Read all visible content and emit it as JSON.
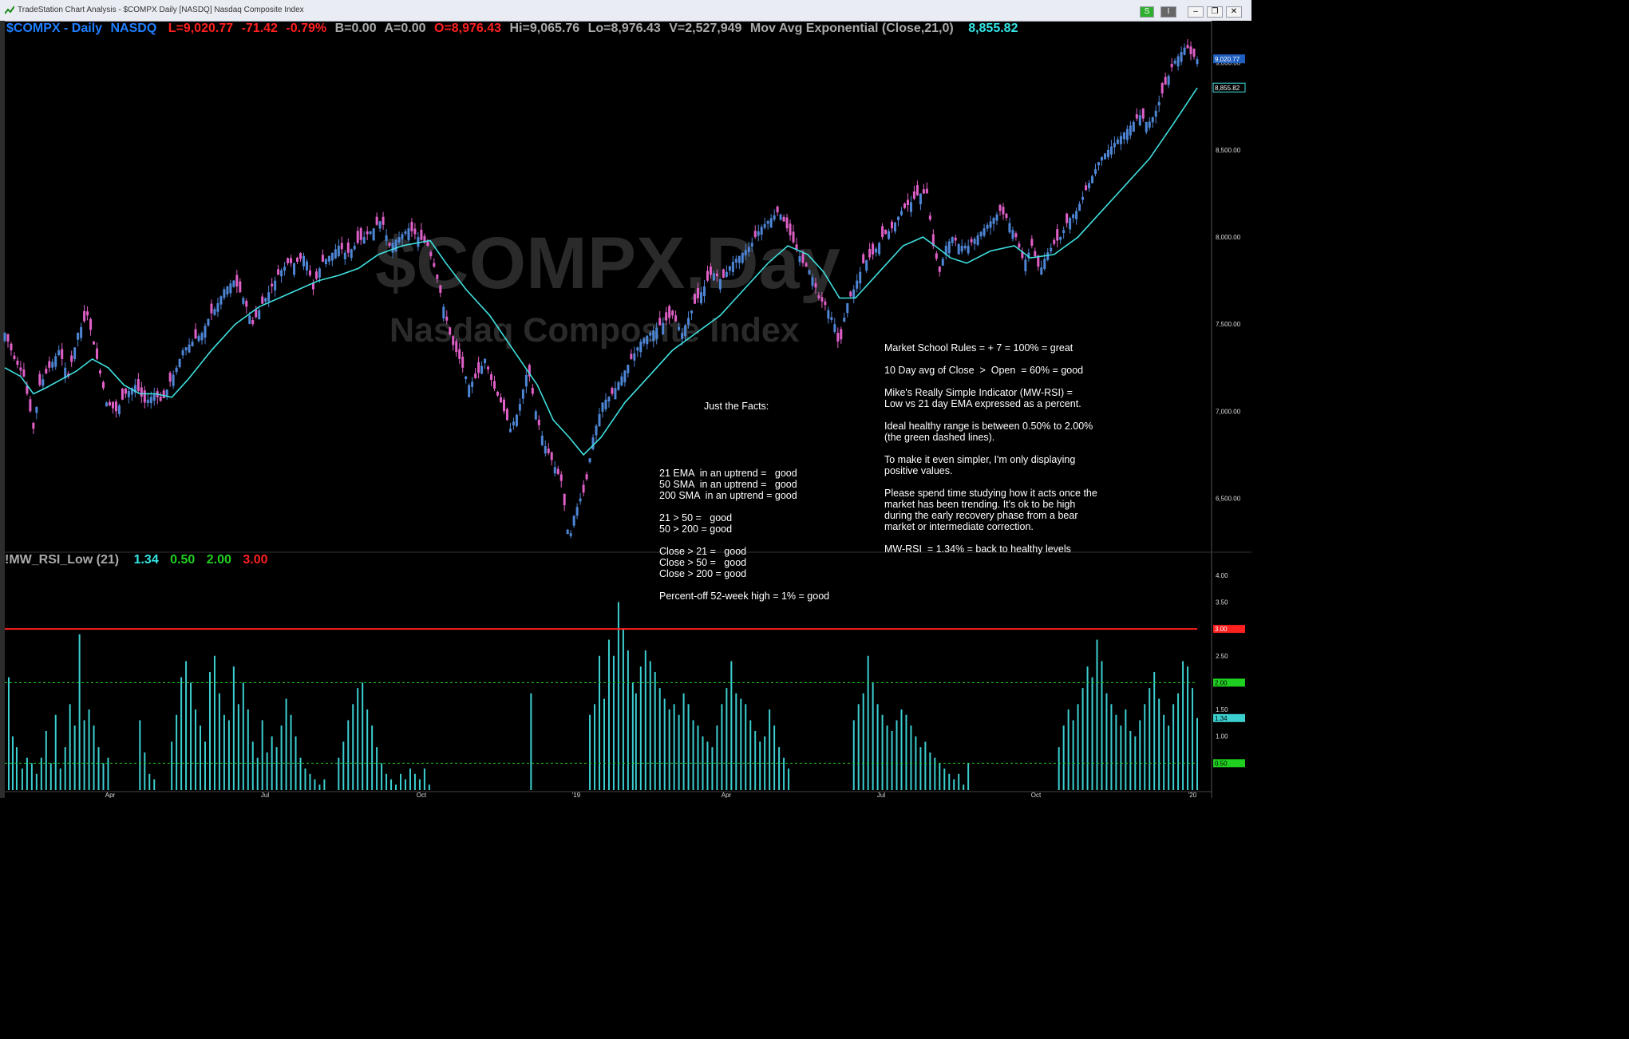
{
  "window": {
    "title": "TradeStation Chart Analysis - $COMPX Daily [NASDQ] Nasdaq Composite Index",
    "buttons": [
      "S",
      "I"
    ]
  },
  "header": {
    "symbol": "$COMPX - Daily",
    "exchange": "NASDQ",
    "last": "L=9,020.77",
    "change": "-71.42",
    "change_pct": "-0.79%",
    "bid": "B=0.00",
    "ask": "A=0.00",
    "open": "O=8,976.43",
    "high": "Hi=9,065.76",
    "low": "Lo=8,976.43",
    "volume": "V=2,527,949",
    "study": "Mov Avg Exponential (Close,21,0)",
    "study_value": "8,855.82"
  },
  "watermark": {
    "symbol": "$COMPX,Day",
    "name": "Nasdaq Composite Index"
  },
  "notes_facts": {
    "heading": "Just the Facts:",
    "lines": [
      "21 EMA  in an uptrend =   good",
      "50 SMA  in an uptrend =   good",
      "200 SMA  in an uptrend = good",
      "",
      "21 > 50 =   good",
      "50 > 200 = good",
      "",
      "Close > 21 =   good",
      "Close > 50 =   good",
      "Close > 200 = good",
      "",
      "Percent-off 52-week high = 1% = good"
    ]
  },
  "notes_rules": {
    "lines": [
      "Market School Rules = + 7 = 100% = great",
      "",
      "10 Day avg of Close  >  Open  = 60% = good",
      "",
      "Mike's Really Simple Indicator (MW-RSI) =",
      "Low vs 21 day EMA expressed as a percent.",
      "",
      "Ideal healthy range is between 0.50% to 2.00%",
      "(the green dashed lines).",
      "",
      "To make it even simpler, I'm only displaying",
      "positive values.",
      "",
      "Please spend time studying how it acts once the",
      "market has been trending. It's ok to be high",
      "during the early recovery phase from a bear",
      "market or intermediate correction.",
      "",
      "MW-RSI  = 1.34% = back to healthy levels"
    ]
  },
  "indicator_header": {
    "name": "!MW_RSI_Low (21)",
    "v1": "1.34",
    "v2": "0.50",
    "v3": "2.00",
    "v4": "3.00"
  },
  "colors": {
    "up": "#4e86d6",
    "down": "#e060c8",
    "ema": "#40e0e0",
    "hist": "#3ccfd0",
    "red": "#ff2020",
    "green": "#20d020",
    "header_blue": "#1f7fff",
    "cyan": "#35e5e5"
  },
  "chart_data": [
    {
      "type": "line",
      "title": "",
      "ylim": [
        6200,
        9150
      ],
      "yticks": [
        "6,500.00",
        "7,000.00",
        "7,500.00",
        "8,000.00",
        "8,500.00",
        "9,000.00"
      ],
      "ytick_values": [
        6500,
        7000,
        7500,
        8000,
        8500,
        9000
      ],
      "xticks": [
        "Apr",
        "Jul",
        "Oct",
        "'19",
        "Apr",
        "Jul",
        "Oct",
        "'20"
      ],
      "last_tag": "9,020.77",
      "ema_tag": "8,855.82",
      "series": [
        {
          "name": "$COMPX",
          "x": [
            0,
            12,
            24,
            36,
            44,
            56,
            68,
            80,
            92,
            104,
            116,
            128,
            140,
            152,
            164,
            176,
            188,
            198,
            206,
            216,
            224,
            236,
            248,
            258,
            266,
            276,
            288,
            300,
            312,
            322,
            334,
            346,
            356,
            366,
            378,
            388,
            398,
            410,
            420,
            430,
            440,
            452,
            464,
            474,
            484,
            496,
            508,
            520,
            532,
            542,
            552,
            562,
            572,
            584,
            594,
            604,
            614,
            624,
            636,
            646,
            658,
            670,
            680,
            690,
            700,
            710,
            716,
            724,
            730,
            740,
            752,
            764,
            776,
            788,
            800,
            812,
            826,
            840,
            852,
            866,
            878,
            890,
            902,
            914,
            926,
            938,
            950,
            962,
            974,
            984,
            994,
            1004,
            1014,
            1024,
            1034,
            1044,
            1050,
            1058,
            1068,
            1080,
            1092,
            1104,
            1116,
            1128,
            1140,
            1150,
            1160,
            1168,
            1176,
            1184,
            1192,
            1202,
            1212,
            1222,
            1232,
            1242,
            1252,
            1262,
            1272,
            1282,
            1292,
            1302,
            1310,
            1318,
            1328,
            1338,
            1348,
            1358,
            1368,
            1378,
            1388,
            1398,
            1408,
            1418,
            1428,
            1438,
            1446,
            1454,
            1462,
            1470,
            1478,
            1486,
            1492,
            1500
          ],
          "values": [
            7450,
            7300,
            7200,
            6900,
            7150,
            7250,
            7350,
            7200,
            7450,
            7550,
            7300,
            7050,
            7000,
            7100,
            7150,
            7050,
            7100,
            7050,
            7150,
            7250,
            7350,
            7400,
            7450,
            7550,
            7600,
            7700,
            7750,
            7650,
            7500,
            7600,
            7700,
            7800,
            7850,
            7850,
            7900,
            7700,
            7850,
            7900,
            7950,
            7900,
            7950,
            8000,
            8050,
            8100,
            7950,
            8000,
            8050,
            8000,
            7950,
            7800,
            7600,
            7400,
            7300,
            7150,
            7200,
            7300,
            7150,
            7050,
            6900,
            7000,
            7250,
            6950,
            6800,
            6700,
            6600,
            6250,
            6400,
            6500,
            6550,
            6850,
            7050,
            7100,
            7200,
            7300,
            7400,
            7450,
            7500,
            7550,
            7450,
            7600,
            7700,
            7800,
            7750,
            7850,
            7900,
            7950,
            8050,
            8100,
            8150,
            8050,
            7950,
            7850,
            7800,
            7650,
            7600,
            7500,
            7350,
            7600,
            7700,
            7850,
            7900,
            8000,
            8050,
            8150,
            8200,
            8250,
            8250,
            7950,
            7800,
            7950,
            8000,
            7950,
            7950,
            8000,
            8050,
            8100,
            8150,
            8100,
            8000,
            7850,
            7950,
            7800,
            7900,
            7950,
            8000,
            8100,
            8150,
            8250,
            8350,
            8450,
            8500,
            8550,
            8600,
            8650,
            8700,
            8650,
            8700,
            8800,
            8900,
            9000,
            9050,
            9100,
            9050,
            9020.77
          ]
        },
        {
          "name": "Mov Avg Exponential (Close,21,0)",
          "x": [
            0,
            20,
            36,
            50,
            70,
            90,
            110,
            130,
            150,
            170,
            190,
            210,
            230,
            260,
            290,
            320,
            345,
            370,
            395,
            420,
            445,
            470,
            500,
            535,
            555,
            580,
            610,
            640,
            670,
            690,
            710,
            728,
            750,
            780,
            810,
            840,
            870,
            900,
            930,
            960,
            985,
            1010,
            1030,
            1050,
            1070,
            1100,
            1130,
            1155,
            1170,
            1190,
            1210,
            1240,
            1270,
            1290,
            1320,
            1350,
            1380,
            1410,
            1440,
            1470,
            1500
          ],
          "values": [
            7250,
            7200,
            7100,
            7130,
            7180,
            7230,
            7300,
            7250,
            7150,
            7100,
            7100,
            7080,
            7180,
            7350,
            7500,
            7600,
            7650,
            7700,
            7750,
            7780,
            7820,
            7900,
            7950,
            7980,
            7850,
            7700,
            7550,
            7350,
            7150,
            6950,
            6850,
            6750,
            6850,
            7050,
            7200,
            7350,
            7450,
            7550,
            7700,
            7850,
            7950,
            7900,
            7800,
            7650,
            7650,
            7800,
            7950,
            8000,
            7950,
            7880,
            7850,
            7920,
            7950,
            7880,
            7900,
            8000,
            8150,
            8300,
            8450,
            8650,
            8855.82
          ]
        }
      ]
    },
    {
      "type": "bar",
      "title": "",
      "ylim": [
        0,
        4.25
      ],
      "yticks": [
        "4.00",
        "3.50",
        "2.50",
        "1.50",
        "1.00"
      ],
      "ytick_values": [
        4.0,
        3.5,
        2.5,
        1.5,
        1.0
      ],
      "reference_lines": [
        {
          "value": 3.0,
          "label": "3.00",
          "style": "solid",
          "color": "red"
        },
        {
          "value": 2.0,
          "label": "2.00",
          "style": "dashed",
          "color": "green"
        },
        {
          "value": 0.5,
          "label": "0.50",
          "style": "dashed",
          "color": "green"
        }
      ],
      "last_tag": "1.34",
      "series": [
        {
          "name": "!MW_RSI_Low (21)",
          "x": [
            5,
            10,
            15,
            22,
            28,
            34,
            40,
            46,
            52,
            58,
            64,
            70,
            76,
            82,
            88,
            94,
            100,
            106,
            112,
            118,
            124,
            130,
            170,
            176,
            182,
            188,
            210,
            216,
            222,
            228,
            234,
            240,
            246,
            252,
            258,
            264,
            270,
            276,
            282,
            288,
            294,
            300,
            306,
            312,
            318,
            324,
            330,
            336,
            342,
            348,
            354,
            360,
            366,
            372,
            378,
            384,
            390,
            396,
            402,
            420,
            426,
            432,
            438,
            444,
            450,
            456,
            462,
            468,
            474,
            480,
            486,
            492,
            498,
            504,
            510,
            516,
            522,
            528,
            534,
            662,
            736,
            742,
            748,
            754,
            760,
            766,
            772,
            778,
            784,
            790,
            794,
            800,
            806,
            812,
            818,
            824,
            830,
            836,
            842,
            848,
            854,
            860,
            866,
            872,
            878,
            884,
            890,
            896,
            902,
            908,
            914,
            920,
            926,
            932,
            938,
            944,
            950,
            956,
            962,
            968,
            974,
            980,
            986,
            1068,
            1074,
            1080,
            1086,
            1092,
            1098,
            1104,
            1110,
            1116,
            1122,
            1128,
            1134,
            1140,
            1146,
            1152,
            1158,
            1164,
            1170,
            1176,
            1182,
            1188,
            1194,
            1200,
            1206,
            1212,
            1326,
            1332,
            1338,
            1344,
            1350,
            1356,
            1362,
            1368,
            1374,
            1380,
            1386,
            1392,
            1398,
            1404,
            1410,
            1416,
            1422,
            1428,
            1434,
            1440,
            1446,
            1452,
            1458,
            1464,
            1470,
            1476,
            1482,
            1488,
            1494,
            1500
          ],
          "values": [
            2.1,
            1.0,
            0.8,
            0.4,
            0.6,
            0.5,
            0.3,
            0.6,
            1.1,
            0.5,
            1.4,
            0.4,
            0.8,
            1.6,
            1.2,
            2.9,
            1.3,
            1.5,
            1.2,
            0.8,
            0.5,
            0.6,
            1.3,
            0.7,
            0.3,
            0.2,
            0.9,
            1.4,
            2.1,
            2.4,
            2.0,
            1.5,
            1.2,
            0.9,
            2.2,
            2.5,
            1.8,
            1.4,
            1.3,
            2.3,
            1.6,
            2.0,
            1.5,
            0.9,
            0.6,
            1.3,
            0.7,
            1.0,
            0.8,
            1.2,
            1.7,
            1.4,
            1.0,
            0.6,
            0.4,
            0.3,
            0.2,
            0.1,
            0.2,
            0.6,
            0.9,
            1.3,
            1.6,
            1.9,
            2.0,
            1.5,
            1.2,
            0.8,
            0.5,
            0.3,
            0.2,
            0.1,
            0.3,
            0.2,
            0.4,
            0.3,
            0.2,
            0.4,
            0.1,
            1.8,
            1.4,
            1.6,
            2.5,
            1.7,
            2.8,
            2.5,
            3.5,
            3.0,
            2.6,
            2.0,
            1.8,
            2.3,
            2.6,
            2.4,
            2.2,
            1.9,
            1.7,
            1.5,
            1.6,
            1.4,
            1.8,
            1.6,
            1.3,
            1.2,
            1.0,
            0.9,
            0.8,
            1.2,
            1.6,
            1.9,
            2.4,
            1.8,
            1.7,
            1.6,
            1.3,
            1.1,
            0.9,
            1.0,
            1.5,
            1.2,
            0.8,
            0.6,
            0.4,
            1.3,
            1.6,
            1.8,
            2.5,
            2.0,
            1.6,
            1.4,
            1.2,
            1.1,
            1.3,
            1.5,
            1.4,
            1.2,
            1.0,
            0.8,
            0.9,
            0.7,
            0.6,
            0.5,
            0.4,
            0.3,
            0.2,
            0.3,
            0.1,
            0.5,
            0.8,
            1.2,
            1.5,
            1.3,
            1.6,
            1.9,
            2.3,
            2.1,
            2.8,
            2.4,
            1.8,
            1.6,
            1.4,
            1.2,
            1.5,
            1.1,
            1.0,
            1.3,
            1.6,
            1.9,
            2.2,
            1.7,
            1.4,
            1.2,
            1.6,
            1.8,
            2.4,
            2.3,
            1.9,
            1.34
          ]
        }
      ]
    }
  ]
}
